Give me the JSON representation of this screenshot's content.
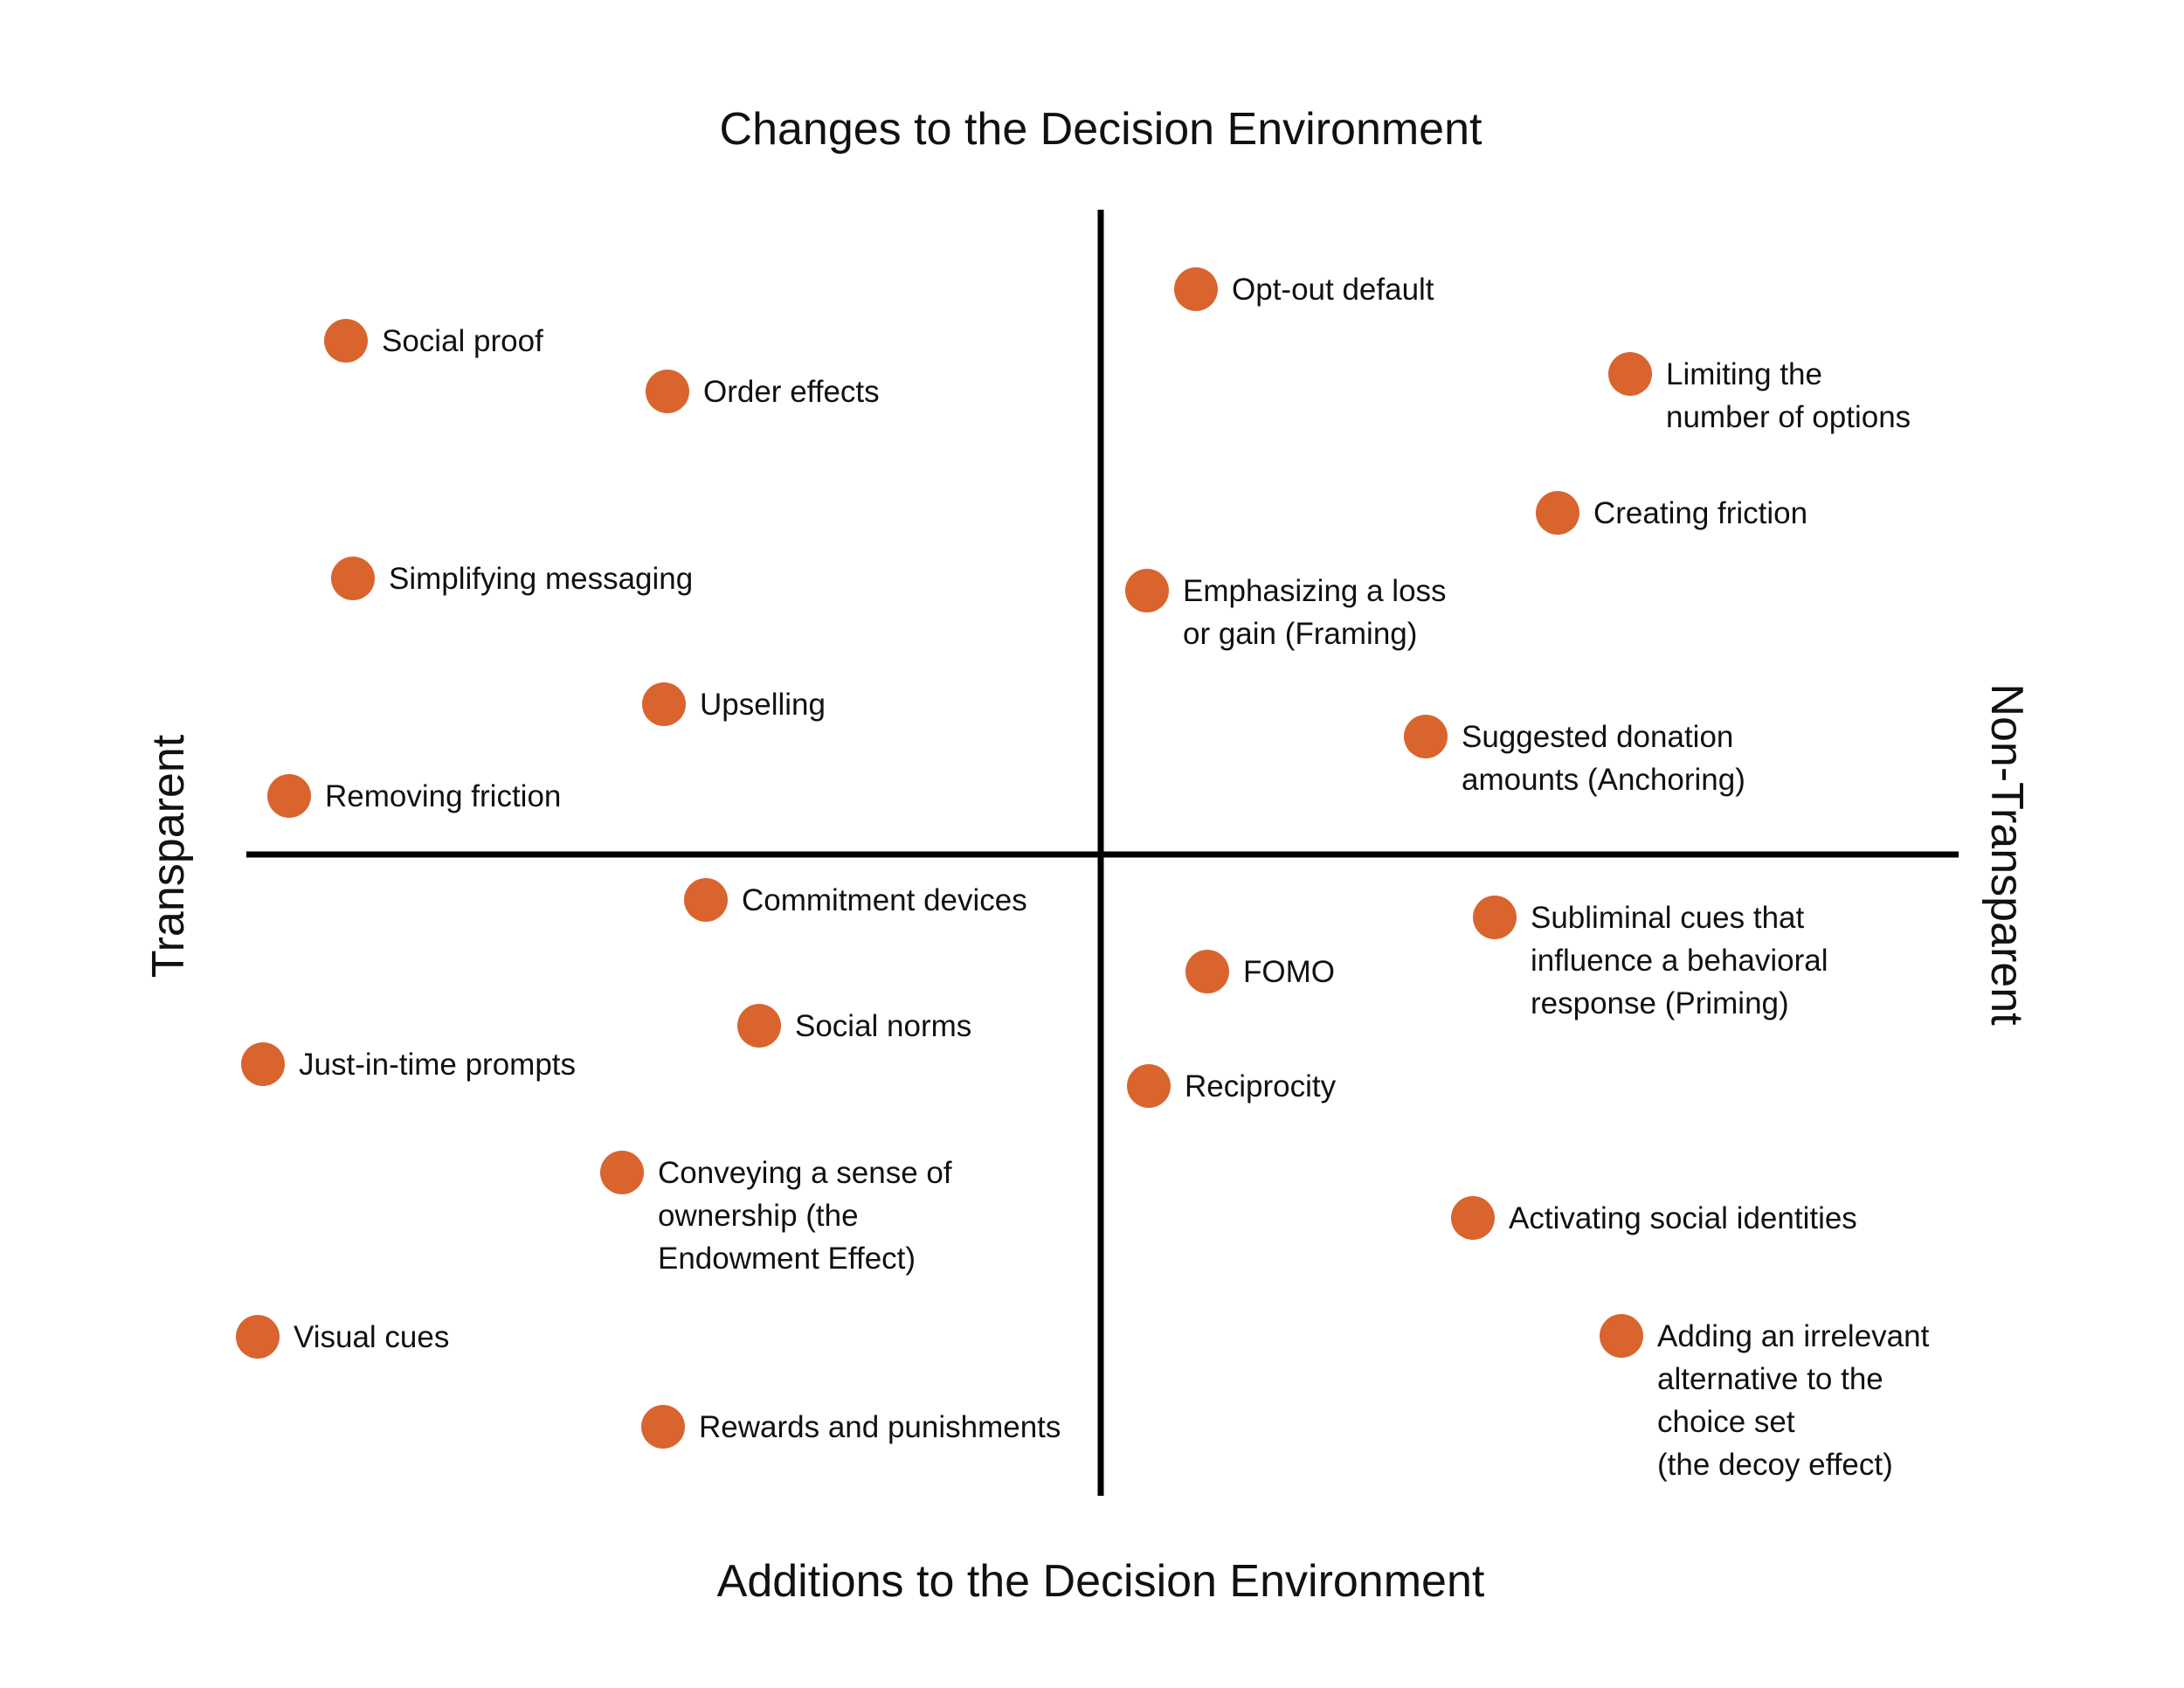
{
  "titles": {
    "top": "Changes to the Decision Environment",
    "bottom": "Additions to the Decision Environment",
    "left": "Transparent",
    "right": "Non-Transparent"
  },
  "colors": {
    "marker": "#d9642e",
    "axis": "#000000",
    "text": "#111111"
  },
  "quadrants": {
    "top_left": [
      {
        "lines": [
          "Social proof"
        ]
      },
      {
        "lines": [
          "Order effects"
        ]
      },
      {
        "lines": [
          "Simplifying messaging"
        ]
      },
      {
        "lines": [
          "Upselling"
        ]
      },
      {
        "lines": [
          "Removing friction"
        ]
      }
    ],
    "top_right": [
      {
        "lines": [
          "Opt-out default"
        ]
      },
      {
        "lines": [
          "Limiting the",
          "number of options"
        ]
      },
      {
        "lines": [
          "Creating friction"
        ]
      },
      {
        "lines": [
          "Emphasizing a loss",
          "or gain (Framing)"
        ]
      },
      {
        "lines": [
          "Suggested donation",
          "amounts (Anchoring)"
        ]
      }
    ],
    "bottom_left": [
      {
        "lines": [
          "Commitment devices"
        ]
      },
      {
        "lines": [
          "Social norms"
        ]
      },
      {
        "lines": [
          "Just-in-time prompts"
        ]
      },
      {
        "lines": [
          "Conveying a sense of",
          "ownership (the",
          "Endowment Effect)"
        ]
      },
      {
        "lines": [
          "Visual cues"
        ]
      },
      {
        "lines": [
          "Rewards and punishments"
        ]
      }
    ],
    "bottom_right": [
      {
        "lines": [
          "Subliminal cues that",
          "influence a behavioral",
          "response (Priming)"
        ]
      },
      {
        "lines": [
          "FOMO"
        ]
      },
      {
        "lines": [
          "Reciprocity"
        ]
      },
      {
        "lines": [
          "Activating social identities"
        ]
      },
      {
        "lines": [
          "Adding an irrelevant",
          "alternative to the",
          "choice set",
          "(the decoy effect)"
        ]
      }
    ]
  }
}
